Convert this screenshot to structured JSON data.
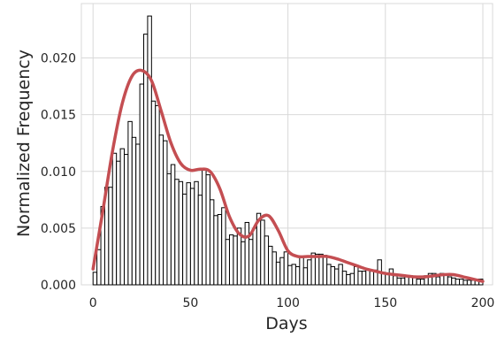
{
  "chart_data": {
    "type": "bar",
    "title": "",
    "xlabel": "Days",
    "ylabel": "Normalized Frequency",
    "xlim": [
      -6,
      205
    ],
    "ylim": [
      0,
      0.0248
    ],
    "xticks": [
      0,
      50,
      100,
      150,
      200
    ],
    "xtick_labels": [
      "0",
      "50",
      "100",
      "150",
      "200"
    ],
    "yticks": [
      0.0,
      0.005,
      0.01,
      0.015,
      0.02
    ],
    "ytick_labels": [
      "0.000",
      "0.005",
      "0.010",
      "0.015",
      "0.020"
    ],
    "grid": true,
    "histogram": {
      "bin_start": 0,
      "bin_width": 2,
      "values": [
        0.0011,
        0.0031,
        0.0069,
        0.0086,
        0.0086,
        0.0116,
        0.0109,
        0.012,
        0.0115,
        0.0144,
        0.013,
        0.0124,
        0.0177,
        0.0221,
        0.0237,
        0.0162,
        0.0158,
        0.0132,
        0.0127,
        0.0098,
        0.0106,
        0.0093,
        0.0091,
        0.008,
        0.009,
        0.0085,
        0.0091,
        0.0079,
        0.0101,
        0.0097,
        0.0075,
        0.0061,
        0.0062,
        0.0068,
        0.004,
        0.0044,
        0.0043,
        0.005,
        0.0038,
        0.0055,
        0.004,
        0.005,
        0.0063,
        0.0057,
        0.0043,
        0.0034,
        0.0029,
        0.002,
        0.0024,
        0.0029,
        0.0017,
        0.0018,
        0.0016,
        0.0024,
        0.0015,
        0.0022,
        0.0028,
        0.0027,
        0.0027,
        0.0026,
        0.0018,
        0.0016,
        0.0014,
        0.0018,
        0.0012,
        0.0009,
        0.001,
        0.0016,
        0.0012,
        0.0012,
        0.0013,
        0.0012,
        0.0013,
        0.0022,
        0.0011,
        0.001,
        0.0014,
        0.0008,
        0.0006,
        0.0006,
        0.0007,
        0.0008,
        0.0007,
        0.0005,
        0.0005,
        0.0008,
        0.001,
        0.001,
        0.0007,
        0.001,
        0.0009,
        0.0007,
        0.0006,
        0.0005,
        0.0005,
        0.0004,
        0.0004,
        0.0004,
        0.0005,
        0.0005
      ]
    },
    "density_curve": {
      "x": [
        0,
        5,
        10,
        15,
        20,
        25,
        30,
        35,
        40,
        45,
        50,
        55,
        60,
        65,
        70,
        75,
        80,
        85,
        90,
        95,
        100,
        105,
        110,
        115,
        120,
        125,
        130,
        135,
        140,
        145,
        150,
        155,
        160,
        165,
        170,
        175,
        180,
        185,
        190,
        195,
        200
      ],
      "y": [
        0.0014,
        0.0065,
        0.0118,
        0.016,
        0.0184,
        0.0189,
        0.018,
        0.0153,
        0.0125,
        0.0107,
        0.0101,
        0.0102,
        0.01,
        0.0085,
        0.006,
        0.0045,
        0.0043,
        0.0057,
        0.0061,
        0.0048,
        0.003,
        0.0025,
        0.0025,
        0.0025,
        0.0025,
        0.0023,
        0.002,
        0.0017,
        0.0014,
        0.0012,
        0.001,
        0.0009,
        0.0008,
        0.0007,
        0.0007,
        0.0008,
        0.0009,
        0.0009,
        0.0007,
        0.0005,
        0.0003
      ]
    },
    "colors": {
      "bar_fill": "#ffffff",
      "bar_edge": "#000000",
      "curve": "#c44e52",
      "grid": "#d9d9d9",
      "frame": "#d9d9d9"
    }
  }
}
